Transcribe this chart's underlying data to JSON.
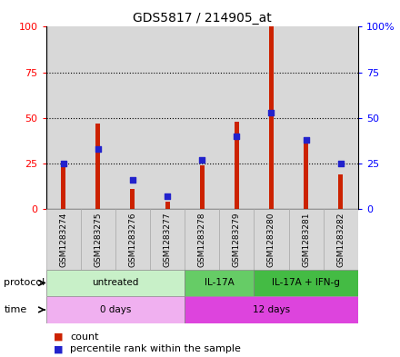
{
  "title": "GDS5817 / 214905_at",
  "samples": [
    "GSM1283274",
    "GSM1283275",
    "GSM1283276",
    "GSM1283277",
    "GSM1283278",
    "GSM1283279",
    "GSM1283280",
    "GSM1283281",
    "GSM1283282"
  ],
  "count_values": [
    25,
    47,
    11,
    4,
    24,
    48,
    100,
    39,
    19
  ],
  "percentile_values": [
    25,
    33,
    16,
    7,
    27,
    40,
    53,
    38,
    25
  ],
  "protocol_groups": [
    {
      "label": "untreated",
      "start": 0,
      "end": 4,
      "color": "#c8f0c8"
    },
    {
      "label": "IL-17A",
      "start": 4,
      "end": 6,
      "color": "#66cc66"
    },
    {
      "label": "IL-17A + IFN-g",
      "start": 6,
      "end": 9,
      "color": "#44bb44"
    }
  ],
  "time_groups": [
    {
      "label": "0 days",
      "start": 0,
      "end": 4,
      "color": "#f0b0f0"
    },
    {
      "label": "12 days",
      "start": 4,
      "end": 9,
      "color": "#dd44dd"
    }
  ],
  "count_color": "#cc2200",
  "percentile_color": "#2222cc",
  "col_bg_color": "#d8d8d8",
  "col_border_color": "#aaaaaa",
  "ylim": [
    0,
    100
  ],
  "yticks": [
    0,
    25,
    50,
    75,
    100
  ],
  "ytick_labels_left": [
    "0",
    "25",
    "50",
    "75",
    "100"
  ],
  "ytick_labels_right": [
    "0",
    "25",
    "50",
    "75",
    "100%"
  ]
}
